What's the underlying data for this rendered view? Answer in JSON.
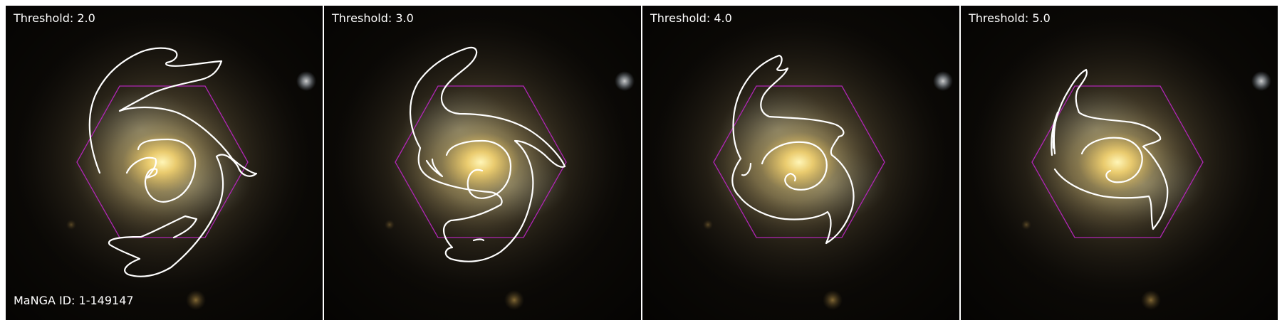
{
  "panels": [
    {
      "threshold_label": "Threshold: 2.0"
    },
    {
      "threshold_label": "Threshold: 3.0"
    },
    {
      "threshold_label": "Threshold: 4.0"
    },
    {
      "threshold_label": "Threshold: 5.0"
    }
  ],
  "galaxy_id_label": "MaNGA ID: 1-149147",
  "colors": {
    "contour": "#ffffff",
    "ifu_hexagon": "#b026b5",
    "label_text": "#ffffff",
    "background": "#0b0906",
    "bulge_core": "#fff0a0"
  }
}
